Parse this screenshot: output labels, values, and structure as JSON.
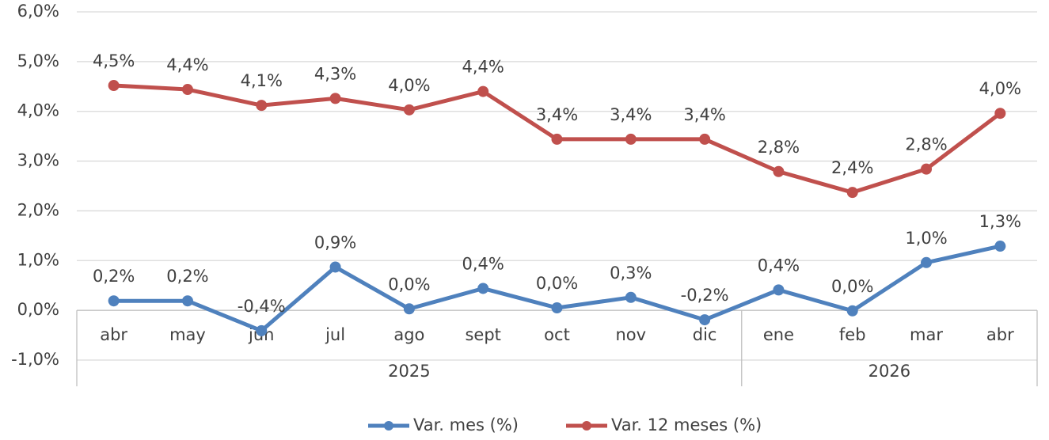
{
  "chart_data": {
    "type": "line",
    "categories": [
      "abr",
      "may",
      "jun",
      "jul",
      "ago",
      "sept",
      "oct",
      "nov",
      "dic",
      "ene",
      "feb",
      "mar",
      "abr"
    ],
    "groups": [
      {
        "label": "2025",
        "count": 9
      },
      {
        "label": "2026",
        "count": 4
      }
    ],
    "series": [
      {
        "name": "Var. mes (%)",
        "color": "#4f81bd",
        "values": [
          0.19,
          0.19,
          -0.41,
          0.87,
          0.03,
          0.44,
          0.05,
          0.26,
          -0.19,
          0.41,
          -0.01,
          0.96,
          1.29
        ],
        "value_labels": [
          "0,2%",
          "0,2%",
          "-0,4%",
          "0,9%",
          "0,0%",
          "0,4%",
          "0,0%",
          "0,3%",
          "-0,2%",
          "0,4%",
          "0,0%",
          "1,0%",
          "1,3%"
        ]
      },
      {
        "name": "Var. 12 meses (%)",
        "color": "#c0504d",
        "values": [
          4.52,
          4.44,
          4.12,
          4.26,
          4.03,
          4.4,
          3.44,
          3.44,
          3.44,
          2.79,
          2.37,
          2.84,
          3.96
        ],
        "value_labels": [
          "4,5%",
          "4,4%",
          "4,1%",
          "4,3%",
          "4,0%",
          "4,4%",
          "3,4%",
          "3,4%",
          "3,4%",
          "2,8%",
          "2,4%",
          "2,8%",
          "4,0%"
        ]
      }
    ],
    "ylim": [
      -1,
      6
    ],
    "yticks": [
      {
        "value": -1,
        "label": "-1,0%"
      },
      {
        "value": 0,
        "label": "0,0%"
      },
      {
        "value": 1,
        "label": "1,0%"
      },
      {
        "value": 2,
        "label": "2,0%"
      },
      {
        "value": 3,
        "label": "3,0%"
      },
      {
        "value": 4,
        "label": "4,0%"
      },
      {
        "value": 5,
        "label": "5,0%"
      },
      {
        "value": 6,
        "label": "6,0%"
      }
    ],
    "grid": true,
    "legend": "bottom"
  }
}
